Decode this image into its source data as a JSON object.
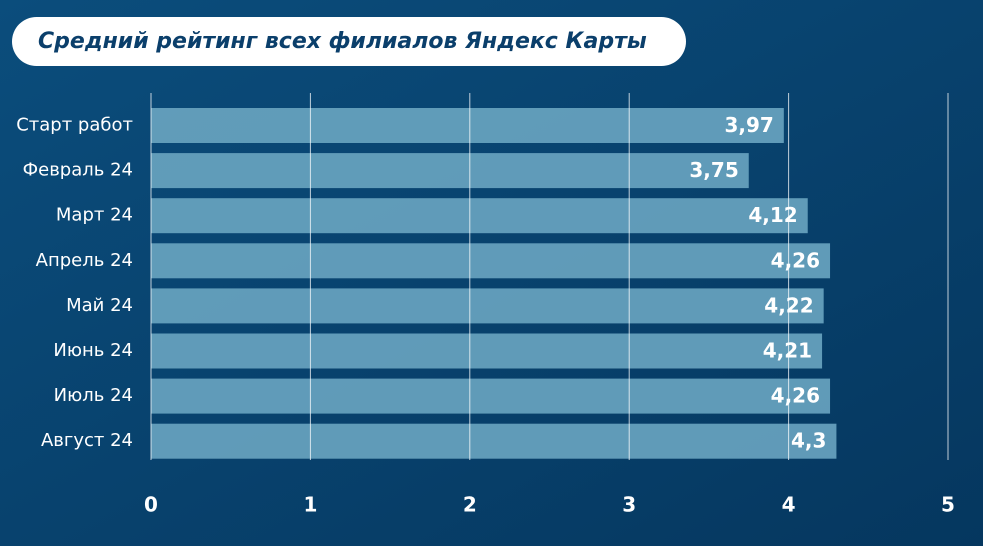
{
  "chart_data": {
    "type": "bar",
    "orientation": "horizontal",
    "title": "Средний рейтинг всех филиалов Яндекс Карты",
    "categories": [
      "Старт работ",
      "Февраль 24",
      "Март 24",
      "Апрель 24",
      "Май 24",
      "Июнь 24",
      "Июль 24",
      "Август 24"
    ],
    "values": [
      3.97,
      3.75,
      4.12,
      4.26,
      4.22,
      4.21,
      4.26,
      4.3
    ],
    "value_labels": [
      "3,97",
      "3,75",
      "4,12",
      "4,26",
      "4,22",
      "4,21",
      "4,26",
      "4,3"
    ],
    "color": "#6aa5c1",
    "xlim": [
      0,
      5
    ],
    "xticks": [
      0,
      1,
      2,
      3,
      4,
      5
    ],
    "grid": true
  }
}
